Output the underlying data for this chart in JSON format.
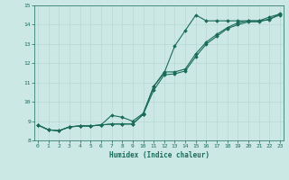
{
  "xlabel": "Humidex (Indice chaleur)",
  "background_color": "#cce8e4",
  "grid_color": "#b8d8d4",
  "line_color": "#1a6b5a",
  "x_values": [
    0,
    1,
    2,
    3,
    4,
    5,
    6,
    7,
    8,
    9,
    10,
    11,
    12,
    13,
    14,
    15,
    16,
    17,
    18,
    19,
    20,
    21,
    22,
    23
  ],
  "line1_y": [
    8.8,
    8.55,
    8.5,
    8.7,
    8.75,
    8.75,
    8.8,
    9.3,
    9.2,
    9.0,
    9.4,
    10.8,
    11.5,
    12.9,
    13.7,
    14.5,
    14.2,
    14.2,
    14.2,
    14.2,
    14.2,
    14.2,
    14.25,
    14.6
  ],
  "line2_y": [
    8.8,
    8.55,
    8.5,
    8.7,
    8.75,
    8.75,
    8.8,
    8.85,
    8.85,
    8.85,
    9.35,
    10.8,
    11.55,
    11.55,
    11.7,
    12.5,
    13.1,
    13.5,
    13.85,
    14.1,
    14.2,
    14.2,
    14.4,
    14.55
  ],
  "line3_y": [
    8.8,
    8.55,
    8.5,
    8.7,
    8.75,
    8.75,
    8.8,
    8.85,
    8.85,
    8.85,
    9.35,
    10.6,
    11.4,
    11.45,
    11.6,
    12.35,
    13.0,
    13.4,
    13.8,
    14.0,
    14.15,
    14.15,
    14.3,
    14.5
  ],
  "xlim": [
    0,
    23
  ],
  "ylim": [
    8.0,
    15.0
  ],
  "yticks": [
    8,
    9,
    10,
    11,
    12,
    13,
    14,
    15
  ],
  "xticks": [
    0,
    1,
    2,
    3,
    4,
    5,
    6,
    7,
    8,
    9,
    10,
    11,
    12,
    13,
    14,
    15,
    16,
    17,
    18,
    19,
    20,
    21,
    22,
    23
  ]
}
